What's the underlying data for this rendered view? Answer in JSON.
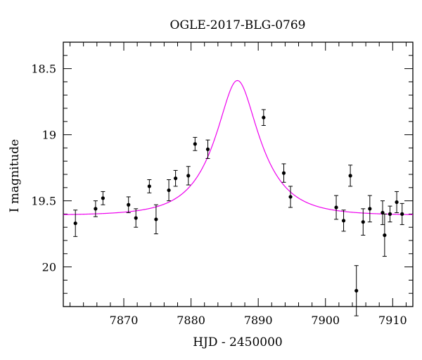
{
  "chart_data": {
    "type": "scatter",
    "title": "OGLE-2017-BLG-0769",
    "xlabel": "HJD - 2450000",
    "ylabel": "I magnitude",
    "xlim": [
      7861.0,
      7913.0
    ],
    "ylim": [
      20.3,
      18.3
    ],
    "y_inverted": true,
    "x_ticks": [
      7870,
      7880,
      7890,
      7900,
      7910
    ],
    "y_ticks": [
      18.5,
      19,
      19.5,
      20
    ],
    "x_tick_labels": [
      "7870",
      "7880",
      "7890",
      "7900",
      "7910"
    ],
    "y_tick_labels": [
      "18.5",
      "19",
      "19.5",
      "20"
    ],
    "grid": false,
    "series": [
      {
        "type": "scatter_with_errorbars",
        "color": "#000000",
        "points": [
          {
            "x": 7862.8,
            "y": 19.67,
            "err": 0.1
          },
          {
            "x": 7865.8,
            "y": 19.56,
            "err": 0.06
          },
          {
            "x": 7866.9,
            "y": 19.48,
            "err": 0.05
          },
          {
            "x": 7870.7,
            "y": 19.53,
            "err": 0.06
          },
          {
            "x": 7871.8,
            "y": 19.63,
            "err": 0.07
          },
          {
            "x": 7873.8,
            "y": 19.39,
            "err": 0.05
          },
          {
            "x": 7874.8,
            "y": 19.64,
            "err": 0.11
          },
          {
            "x": 7876.7,
            "y": 19.42,
            "err": 0.08
          },
          {
            "x": 7877.7,
            "y": 19.33,
            "err": 0.06
          },
          {
            "x": 7879.6,
            "y": 19.31,
            "err": 0.07
          },
          {
            "x": 7880.6,
            "y": 19.07,
            "err": 0.05
          },
          {
            "x": 7882.5,
            "y": 19.11,
            "err": 0.07
          },
          {
            "x": 7890.8,
            "y": 18.87,
            "err": 0.06
          },
          {
            "x": 7893.8,
            "y": 19.29,
            "err": 0.07
          },
          {
            "x": 7894.8,
            "y": 19.47,
            "err": 0.08
          },
          {
            "x": 7901.6,
            "y": 19.55,
            "err": 0.09
          },
          {
            "x": 7902.7,
            "y": 19.65,
            "err": 0.08
          },
          {
            "x": 7903.7,
            "y": 19.31,
            "err": 0.08
          },
          {
            "x": 7904.6,
            "y": 20.18,
            "err": 0.19
          },
          {
            "x": 7905.6,
            "y": 19.66,
            "err": 0.1
          },
          {
            "x": 7906.6,
            "y": 19.56,
            "err": 0.1
          },
          {
            "x": 7908.5,
            "y": 19.59,
            "err": 0.09
          },
          {
            "x": 7908.8,
            "y": 19.76,
            "err": 0.16
          },
          {
            "x": 7909.6,
            "y": 19.6,
            "err": 0.06
          },
          {
            "x": 7910.6,
            "y": 19.51,
            "err": 0.08
          },
          {
            "x": 7911.4,
            "y": 19.6,
            "err": 0.08
          }
        ]
      },
      {
        "type": "model_curve",
        "color": "#ee00ee",
        "baseline_mag": 19.61,
        "peak_mag": 18.59,
        "t0": 7886.9,
        "tE": 6.2
      }
    ]
  }
}
